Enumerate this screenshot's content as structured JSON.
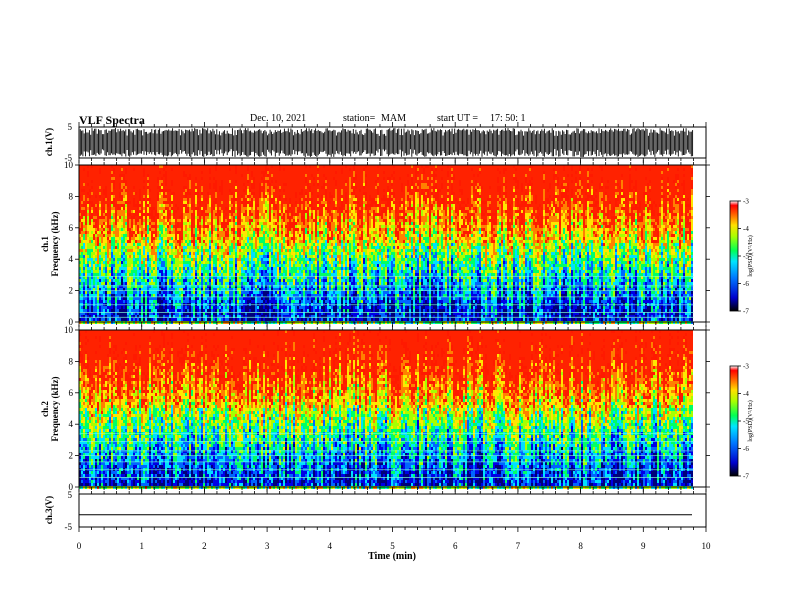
{
  "header": {
    "title": "VLF Spectra",
    "date": "Dec. 10, 2021",
    "station_label": "station=",
    "station": "MAM",
    "start_label": "start UT =",
    "start_time": "17: 50: 1"
  },
  "colormap": [
    "#00007a",
    "#0000e6",
    "#0066ff",
    "#00e0ff",
    "#00ff66",
    "#a6ff00",
    "#ffe600",
    "#ff8000",
    "#ff1a00",
    "#ff2200"
  ],
  "chart_data": [
    {
      "type": "line",
      "panel": "waveform",
      "ylabel": "ch.1(V)",
      "ylim": [
        -5,
        5
      ],
      "y_ticks": [
        "5",
        "-5"
      ],
      "xlim": [
        0,
        10
      ],
      "description_of_signal": "dense black broadband waveform spanning nearly full range"
    },
    {
      "type": "heatmap",
      "panel": "spectrogram",
      "ylabel_channel": "ch.1",
      "ylabel": "Frequency (kHz)",
      "ylim": [
        0,
        10
      ],
      "y_ticks": [
        "0",
        "2",
        "4",
        "6",
        "8",
        "10"
      ],
      "xlim": [
        0,
        10
      ],
      "data_xmax": 9.8,
      "colorbar": {
        "label": "log(PSD)(V²/Hz)",
        "range": [
          -7,
          -3
        ],
        "ticks": [
          "-3",
          "-4",
          "-5",
          "-6",
          "-7"
        ]
      },
      "lines_khz": [
        0.3,
        0.6,
        1.1,
        1.6,
        2.0,
        2.3,
        2.9
      ]
    },
    {
      "type": "heatmap",
      "panel": "spectrogram",
      "ylabel_channel": "ch.2",
      "ylabel": "Frequency (kHz)",
      "ylim": [
        0,
        10
      ],
      "y_ticks": [
        "0",
        "2",
        "4",
        "6",
        "8",
        "10"
      ],
      "xlim": [
        0,
        10
      ],
      "data_xmax": 9.8,
      "colorbar": {
        "label": "log(PSD)(V²/Hz)",
        "range": [
          -7,
          -3
        ],
        "ticks": [
          "-3",
          "-4",
          "-5",
          "-6",
          "-7"
        ]
      },
      "lines_khz": [
        0.6,
        1.1,
        1.6,
        2.0,
        2.3,
        2.9,
        3.4
      ]
    },
    {
      "type": "line",
      "panel": "waveform",
      "ylabel": "ch.3(V)",
      "ylim": [
        -5,
        5
      ],
      "y_ticks": [
        "5",
        "-5"
      ],
      "xlim": [
        0,
        10
      ],
      "constant_value": -1.3
    }
  ],
  "x_axis": {
    "label": "Time (min)",
    "ticks": [
      "0",
      "1",
      "2",
      "3",
      "4",
      "5",
      "6",
      "7",
      "8",
      "9",
      "10"
    ]
  }
}
